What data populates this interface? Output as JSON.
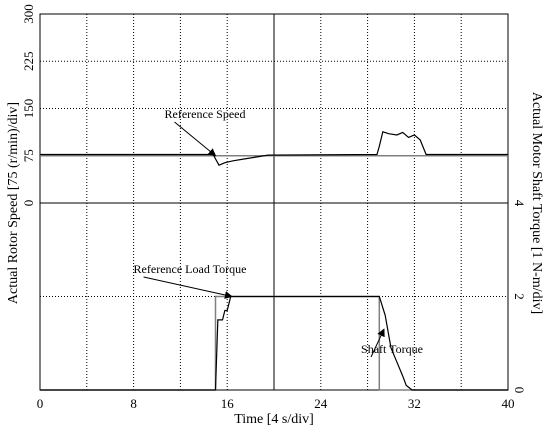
{
  "chart_data": [
    {
      "type": "line",
      "ylabel": "Actual Rotor Speed [75 (r/min)/div]",
      "xlim": [
        0,
        40
      ],
      "ylim": [
        0,
        300
      ],
      "yticks": [
        0,
        75,
        150,
        225,
        300
      ],
      "grid": true,
      "series": [
        {
          "name": "Reference Speed",
          "color": "#808080",
          "x": [
            0,
            40
          ],
          "values": [
            75,
            75
          ]
        },
        {
          "name": "Actual Rotor Speed",
          "color": "#000000",
          "x": [
            0,
            14.8,
            15,
            15.3,
            15.8,
            16.5,
            17.5,
            18.5,
            19.5,
            28.8,
            29,
            29.3,
            29.8,
            30.5,
            31,
            31.5,
            32,
            32.5,
            33,
            40
          ],
          "values": [
            77,
            77,
            70,
            60,
            64,
            67,
            70,
            73,
            76,
            77,
            90,
            113,
            110,
            108,
            112,
            104,
            108,
            100,
            77,
            77
          ]
        }
      ],
      "annotations": [
        {
          "text": "Reference Speed",
          "x": 15,
          "y": 75
        }
      ]
    },
    {
      "type": "line",
      "ylabel": "Actual Motor Shaft Torque [1 N-m/div]",
      "xlabel": "Time [4 s/div]",
      "xlim": [
        0,
        40
      ],
      "xticks": [
        0,
        8,
        16,
        24,
        32,
        40
      ],
      "ylim": [
        0,
        4
      ],
      "yticks": [
        0,
        2,
        4
      ],
      "grid": true,
      "series": [
        {
          "name": "Reference Load Torque",
          "color": "#808080",
          "x": [
            0,
            15,
            15,
            29,
            29,
            40
          ],
          "values": [
            0,
            0,
            2,
            2,
            0,
            0
          ]
        },
        {
          "name": "Shaft Torque",
          "color": "#000000",
          "x": [
            0,
            15,
            15.2,
            15.6,
            15.8,
            16,
            16.3,
            29,
            29.5,
            30,
            30.5,
            31,
            31.3,
            31.8,
            32.5,
            40
          ],
          "values": [
            0,
            0,
            1.5,
            1.5,
            1.7,
            1.7,
            2,
            2,
            1.6,
            0.9,
            0.6,
            0.3,
            0.1,
            0,
            0,
            0
          ]
        }
      ],
      "annotations": [
        {
          "text": "Reference Load Torque",
          "x": 16.4,
          "y": 2
        },
        {
          "text": "Shaft Torque",
          "x": 29.4,
          "y": 1.3
        }
      ]
    }
  ]
}
